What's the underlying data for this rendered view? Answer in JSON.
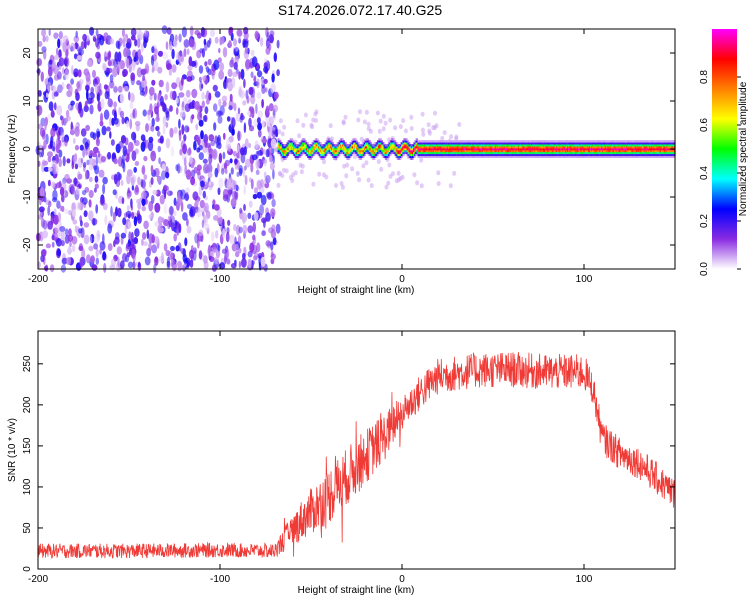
{
  "title": "S174.2026.072.17.40.G25",
  "chart_data": [
    {
      "type": "heatmap",
      "xlabel": "Height of straight line (km)",
      "ylabel": "Frequency (Hz)",
      "xlim": [
        -200,
        150
      ],
      "ylim": [
        -25,
        25
      ],
      "xticks": [
        -200,
        -100,
        0,
        100
      ],
      "yticks": [
        -20,
        -10,
        0,
        10,
        20
      ],
      "colorbar": {
        "label": "Normalized spectral amplitude",
        "range": [
          0,
          1
        ],
        "ticks": [
          0.0,
          0.2,
          0.4,
          0.6,
          0.8
        ],
        "colors": [
          "#ffffff",
          "#8a2be2",
          "#0000ff",
          "#00ffff",
          "#00ff00",
          "#ffff00",
          "#ff8000",
          "#ff0000",
          "#ff00ff"
        ]
      },
      "regions": [
        {
          "x_range": [
            -200,
            -68
          ],
          "freq_range": [
            -25,
            25
          ],
          "description_level": 0.15
        },
        {
          "x_range": [
            -68,
            150
          ],
          "freq_center": 0,
          "freq_width": 2,
          "peak_level": 1.0
        }
      ]
    },
    {
      "type": "line",
      "xlabel": "Height of straight line (km)",
      "ylabel": "SNR (10 * v/v)",
      "xlim": [
        -200,
        150
      ],
      "ylim": [
        0,
        290
      ],
      "xticks": [
        -200,
        -100,
        0,
        100
      ],
      "yticks": [
        0,
        50,
        100,
        150,
        200,
        250
      ],
      "color": "#f03a36",
      "series": [
        {
          "name": "SNR",
          "x": [
            -200,
            -150,
            -100,
            -70,
            -65,
            -55,
            -40,
            -25,
            -10,
            0,
            10,
            20,
            40,
            60,
            80,
            100,
            105,
            110,
            120,
            130,
            140,
            150
          ],
          "y": [
            22,
            22,
            23,
            22,
            35,
            60,
            90,
            125,
            160,
            190,
            215,
            235,
            242,
            243,
            240,
            240,
            220,
            160,
            140,
            130,
            110,
            90
          ],
          "noise": [
            9,
            9,
            9,
            9,
            15,
            25,
            35,
            35,
            30,
            22,
            22,
            22,
            22,
            22,
            22,
            22,
            20,
            20,
            20,
            20,
            20,
            20
          ]
        }
      ]
    }
  ]
}
